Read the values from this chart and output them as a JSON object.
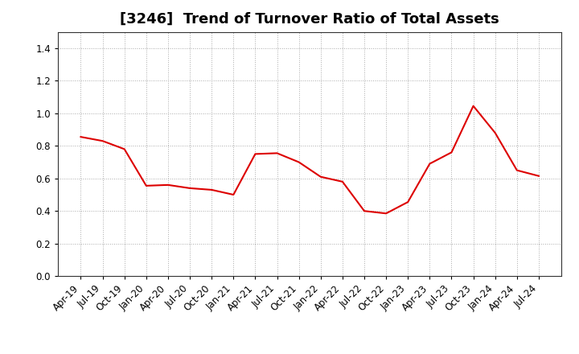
{
  "title": "[3246]  Trend of Turnover Ratio of Total Assets",
  "line_color": "#dd0000",
  "line_width": 1.5,
  "background_color": "#ffffff",
  "grid_color": "#aaaaaa",
  "ylim": [
    0.0,
    1.5
  ],
  "yticks": [
    0.0,
    0.2,
    0.4,
    0.6,
    0.8,
    1.0,
    1.2,
    1.4
  ],
  "x_labels": [
    "Apr-19",
    "Jul-19",
    "Oct-19",
    "Jan-20",
    "Apr-20",
    "Jul-20",
    "Oct-20",
    "Jan-21",
    "Apr-21",
    "Jul-21",
    "Oct-21",
    "Jan-22",
    "Apr-22",
    "Jul-22",
    "Oct-22",
    "Jan-23",
    "Apr-23",
    "Jul-23",
    "Oct-23",
    "Jan-24",
    "Apr-24",
    "Jul-24"
  ],
  "y_values": [
    0.855,
    0.83,
    0.78,
    0.555,
    0.56,
    0.54,
    0.53,
    0.5,
    0.75,
    0.755,
    0.7,
    0.61,
    0.58,
    0.4,
    0.385,
    0.455,
    0.69,
    0.76,
    1.045,
    0.88,
    0.65,
    0.615
  ],
  "title_fontsize": 13,
  "tick_fontsize": 8.5
}
